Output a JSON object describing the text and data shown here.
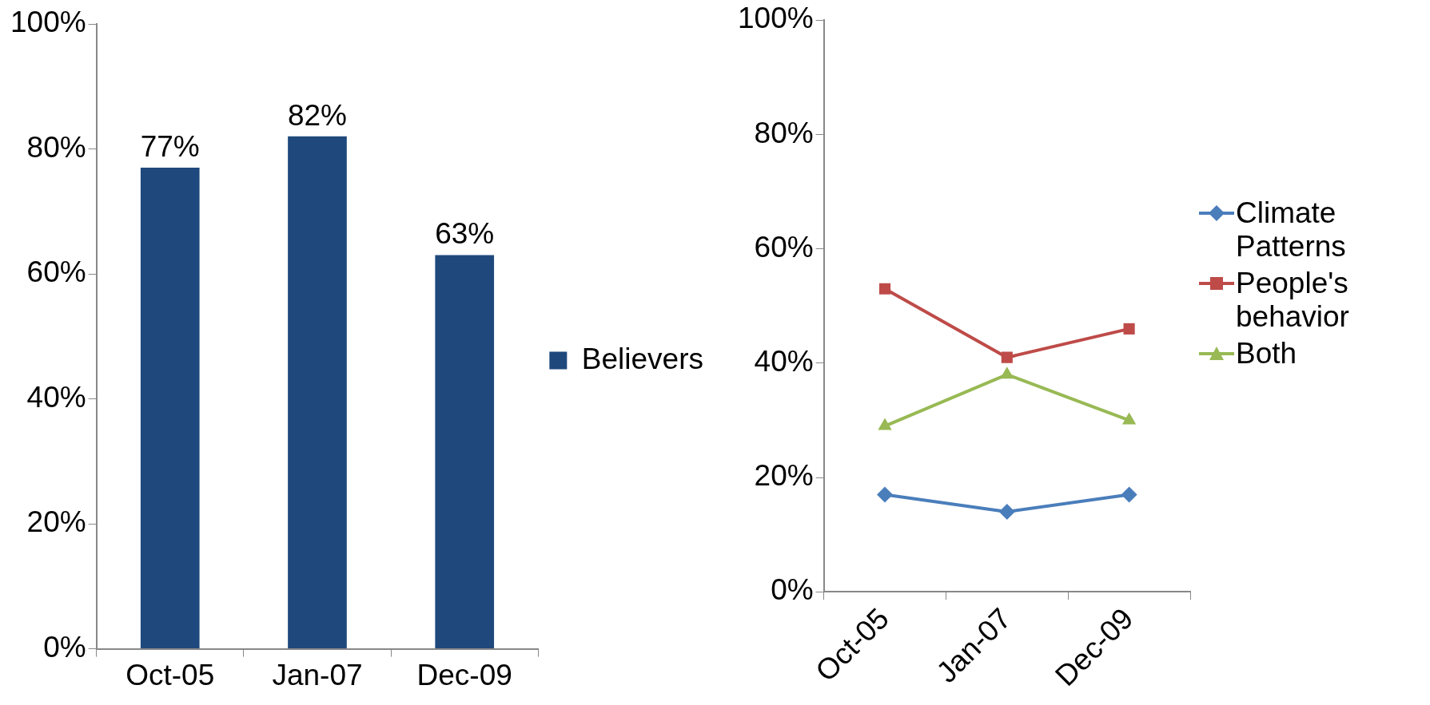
{
  "chart_data": [
    {
      "type": "bar",
      "categories": [
        "Oct-05",
        "Jan-07",
        "Dec-09"
      ],
      "series": [
        {
          "name": "Believers",
          "color": "#1f497d",
          "values": [
            77,
            82,
            63
          ],
          "value_labels": [
            "77%",
            "82%",
            "63%"
          ]
        }
      ],
      "ylim": [
        0,
        100
      ],
      "yticks": [
        {
          "value": 0,
          "label": "0%"
        },
        {
          "value": 20,
          "label": "20%"
        },
        {
          "value": 40,
          "label": "40%"
        },
        {
          "value": 60,
          "label": "60%"
        },
        {
          "value": 80,
          "label": "80%"
        },
        {
          "value": 100,
          "label": "100%"
        }
      ],
      "grid": false,
      "legend": "right"
    },
    {
      "type": "line",
      "categories": [
        "Oct-05",
        "Jan-07",
        "Dec-09"
      ],
      "series": [
        {
          "name": "Climate Patterns",
          "color": "#4a7ebb",
          "values": [
            17,
            14,
            17
          ],
          "marker": "diamond"
        },
        {
          "name": "People's behavior",
          "color": "#be4b48",
          "values": [
            53,
            41,
            46
          ],
          "marker": "square"
        },
        {
          "name": "Both",
          "color": "#98b954",
          "values": [
            29,
            38,
            30
          ],
          "marker": "triangle"
        }
      ],
      "ylim": [
        0,
        100
      ],
      "yticks": [
        {
          "value": 0,
          "label": "0%"
        },
        {
          "value": 20,
          "label": "20%"
        },
        {
          "value": 40,
          "label": "40%"
        },
        {
          "value": 60,
          "label": "60%"
        },
        {
          "value": 80,
          "label": "80%"
        },
        {
          "value": 100,
          "label": "100%"
        }
      ],
      "grid": false,
      "legend": "right"
    }
  ]
}
